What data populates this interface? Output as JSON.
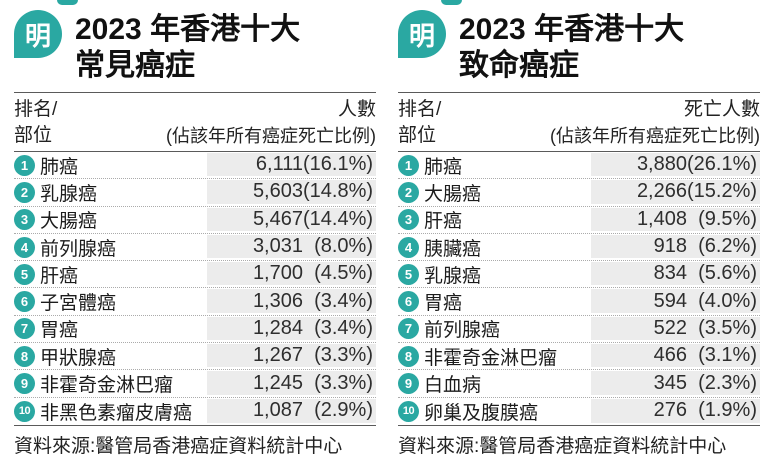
{
  "colors": {
    "teal": "#2aa8a2",
    "value_column_bg": "#ececec",
    "rule": "#5a5a5a",
    "text": "#1c1c1c"
  },
  "panels": [
    {
      "logo_glyph": "明",
      "title_line1": "2023 年香港十大",
      "title_line2": "常見癌症",
      "col_rank_line1": "排名/",
      "col_rank_line2": "部位",
      "col_value": "人數",
      "col_value_note": "(佔該年所有癌症死亡比例)",
      "source_note": "資料來源:醫管局香港癌症資料統計中心",
      "rows": [
        {
          "rank": "1",
          "name": "肺癌",
          "count": "6,111",
          "pct": "(16.1%)"
        },
        {
          "rank": "2",
          "name": "乳腺癌",
          "count": "5,603",
          "pct": "(14.8%)"
        },
        {
          "rank": "3",
          "name": "大腸癌",
          "count": "5,467",
          "pct": "(14.4%)"
        },
        {
          "rank": "4",
          "name": "前列腺癌",
          "count": "3,031",
          "pct": "(8.0%)"
        },
        {
          "rank": "5",
          "name": "肝癌",
          "count": "1,700",
          "pct": "(4.5%)"
        },
        {
          "rank": "6",
          "name": "子宮體癌",
          "count": "1,306",
          "pct": "(3.4%)"
        },
        {
          "rank": "7",
          "name": "胃癌",
          "count": "1,284",
          "pct": "(3.4%)"
        },
        {
          "rank": "8",
          "name": "甲狀腺癌",
          "count": "1,267",
          "pct": "(3.3%)"
        },
        {
          "rank": "9",
          "name": "非霍奇金淋巴瘤",
          "count": "1,245",
          "pct": "(3.3%)"
        },
        {
          "rank": "10",
          "name": "非黑色素瘤皮膚癌",
          "count": "1,087",
          "pct": "(2.9%)"
        }
      ]
    },
    {
      "logo_glyph": "明",
      "title_line1": "2023 年香港十大",
      "title_line2": "致命癌症",
      "col_rank_line1": "排名/",
      "col_rank_line2": "部位",
      "col_value": "死亡人數",
      "col_value_note": "(佔該年所有癌症死亡比例)",
      "source_note": "資料來源:醫管局香港癌症資料統計中心",
      "rows": [
        {
          "rank": "1",
          "name": "肺癌",
          "count": "3,880",
          "pct": "(26.1%)"
        },
        {
          "rank": "2",
          "name": "大腸癌",
          "count": "2,266",
          "pct": "(15.2%)"
        },
        {
          "rank": "3",
          "name": "肝癌",
          "count": "1,408",
          "pct": "(9.5%)"
        },
        {
          "rank": "4",
          "name": "胰臟癌",
          "count": "918",
          "pct": "(6.2%)"
        },
        {
          "rank": "5",
          "name": "乳腺癌",
          "count": "834",
          "pct": "(5.6%)"
        },
        {
          "rank": "6",
          "name": "胃癌",
          "count": "594",
          "pct": "(4.0%)"
        },
        {
          "rank": "7",
          "name": "前列腺癌",
          "count": "522",
          "pct": "(3.5%)"
        },
        {
          "rank": "8",
          "name": "非霍奇金淋巴瘤",
          "count": "466",
          "pct": "(3.1%)"
        },
        {
          "rank": "9",
          "name": "白血病",
          "count": "345",
          "pct": "(2.3%)"
        },
        {
          "rank": "10",
          "name": "卵巢及腹膜癌",
          "count": "276",
          "pct": "(1.9%)"
        }
      ]
    }
  ],
  "chart_data": [
    {
      "type": "table",
      "title": "2023 年香港十大常見癌症",
      "columns": [
        "排名",
        "部位",
        "人數",
        "佔該年所有癌症死亡比例"
      ],
      "rows": [
        [
          1,
          "肺癌",
          6111,
          "16.1%"
        ],
        [
          2,
          "乳腺癌",
          5603,
          "14.8%"
        ],
        [
          3,
          "大腸癌",
          5467,
          "14.4%"
        ],
        [
          4,
          "前列腺癌",
          3031,
          "8.0%"
        ],
        [
          5,
          "肝癌",
          1700,
          "4.5%"
        ],
        [
          6,
          "子宮體癌",
          1306,
          "3.4%"
        ],
        [
          7,
          "胃癌",
          1284,
          "3.4%"
        ],
        [
          8,
          "甲狀腺癌",
          1267,
          "3.3%"
        ],
        [
          9,
          "非霍奇金淋巴瘤",
          1245,
          "3.3%"
        ],
        [
          10,
          "非黑色素瘤皮膚癌",
          1087,
          "2.9%"
        ]
      ],
      "source": "資料來源:醫管局香港癌症資料統計中心"
    },
    {
      "type": "table",
      "title": "2023 年香港十大致命癌症",
      "columns": [
        "排名",
        "部位",
        "死亡人數",
        "佔該年所有癌症死亡比例"
      ],
      "rows": [
        [
          1,
          "肺癌",
          3880,
          "26.1%"
        ],
        [
          2,
          "大腸癌",
          2266,
          "15.2%"
        ],
        [
          3,
          "肝癌",
          1408,
          "9.5%"
        ],
        [
          4,
          "胰臟癌",
          918,
          "6.2%"
        ],
        [
          5,
          "乳腺癌",
          834,
          "5.6%"
        ],
        [
          6,
          "胃癌",
          594,
          "4.0%"
        ],
        [
          7,
          "前列腺癌",
          522,
          "3.5%"
        ],
        [
          8,
          "非霍奇金淋巴瘤",
          466,
          "3.1%"
        ],
        [
          9,
          "白血病",
          345,
          "2.3%"
        ],
        [
          10,
          "卵巢及腹膜癌",
          276,
          "1.9%"
        ]
      ],
      "source": "資料來源:醫管局香港癌症資料統計中心"
    }
  ]
}
